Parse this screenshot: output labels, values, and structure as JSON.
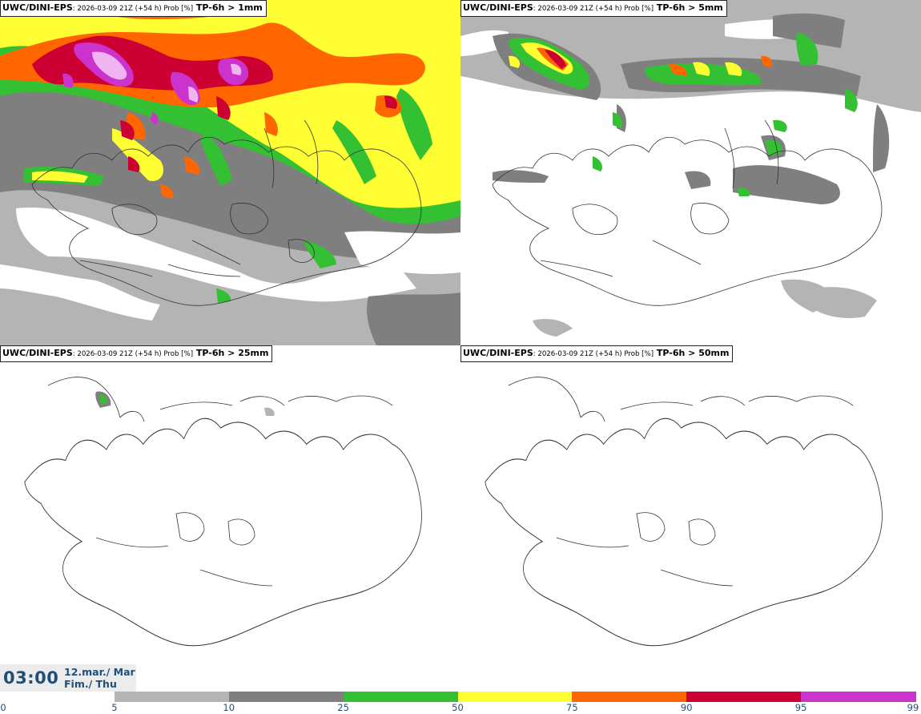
{
  "panels": [
    {
      "model": "UWC/DINI-EPS",
      "run_info": ": 2026-03-09 21Z (+54 h) Prob [%]",
      "threshold": " TP-6h > 1mm"
    },
    {
      "model": "UWC/DINI-EPS",
      "run_info": ": 2026-03-09 21Z (+54 h) Prob [%]",
      "threshold": " TP-6h > 5mm"
    },
    {
      "model": "UWC/DINI-EPS",
      "run_info": ": 2026-03-09 21Z (+54 h) Prob [%]",
      "threshold": " TP-6h > 25mm"
    },
    {
      "model": "UWC/DINI-EPS",
      "run_info": ": 2026-03-09 21Z (+54 h) Prob [%]",
      "threshold": " TP-6h > 50mm"
    }
  ],
  "valid_time": {
    "time": "03:00",
    "date_line1": "12.mar./ Mar",
    "date_line2": "Fim./ Thu"
  },
  "colorbar": {
    "ticks": [
      "0",
      "5",
      "10",
      "25",
      "50",
      "75",
      "90",
      "95",
      "99"
    ],
    "colors": [
      "#ffffff",
      "#b4b4b4",
      "#7f7f7f",
      "#33c133",
      "#ffff33",
      "#ff6600",
      "#cc0033",
      "#cc33cc",
      "#f0b4f0"
    ]
  },
  "map_colors": {
    "light_gray": "#b4b4b4",
    "dark_gray": "#7f7f7f",
    "green": "#33c133",
    "yellow": "#ffff33",
    "orange": "#ff6600",
    "red": "#cc0033",
    "magenta": "#cc33cc",
    "pink": "#f0b4f0",
    "coast": "#333333"
  }
}
